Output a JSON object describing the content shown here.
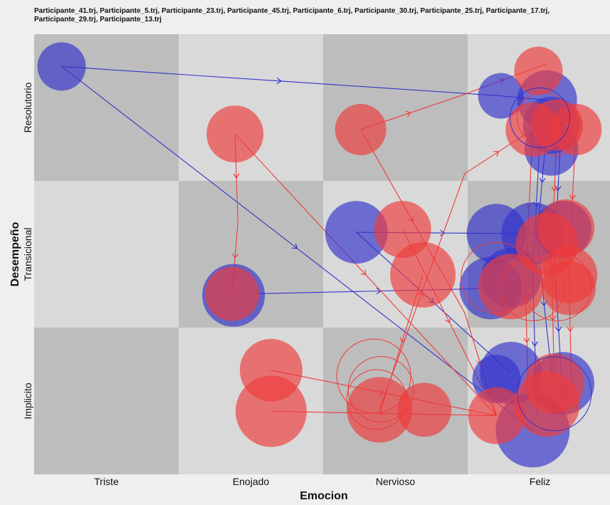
{
  "chart_data": {
    "type": "scatter",
    "title": "Participante_41.trj, Participante_5.trj, Participante_23.trj, Participante_45.trj, Participante_6.trj, Participante_30.trj, Participante_25.trj, Participante_17.trj, Participante_29.trj, Participante_13.trj",
    "xlabel": "Emocion",
    "ylabel": "Desempeño",
    "x_categories": [
      "Triste",
      "Enojado",
      "Nervioso",
      "Feliz"
    ],
    "y_categories": [
      "Resolutorio",
      "Transicional",
      "Implicito"
    ],
    "grid": true,
    "colors": {
      "red": "#ee3b3b",
      "blue": "#3333cc",
      "cell_dark": "#bdbdbd",
      "cell_light": "#d9d9d9"
    },
    "series": [
      {
        "color": "blue",
        "points": [
          {
            "x": 0.19,
            "y": 0.22,
            "r": 34
          },
          {
            "x": 3.23,
            "y": 0.42,
            "r": 32
          },
          {
            "x": 3.55,
            "y": 0.45,
            "r": 42
          },
          {
            "x": 3.58,
            "y": 0.62,
            "r": 40
          },
          {
            "x": 3.58,
            "y": 0.78,
            "r": 38
          },
          {
            "x": 2.23,
            "y": 1.35,
            "r": 44
          },
          {
            "x": 3.2,
            "y": 1.36,
            "r": 42
          },
          {
            "x": 3.45,
            "y": 1.36,
            "r": 44
          },
          {
            "x": 3.66,
            "y": 1.33,
            "r": 40
          },
          {
            "x": 3.3,
            "y": 1.66,
            "r": 42
          },
          {
            "x": 3.16,
            "y": 1.73,
            "r": 44
          },
          {
            "x": 1.38,
            "y": 1.78,
            "r": 44
          },
          {
            "x": 3.3,
            "y": 2.31,
            "r": 44
          },
          {
            "x": 3.2,
            "y": 2.35,
            "r": 34
          },
          {
            "x": 3.66,
            "y": 2.38,
            "r": 44
          },
          {
            "x": 3.45,
            "y": 2.7,
            "r": 52
          }
        ]
      },
      {
        "color": "red",
        "points": [
          {
            "x": 3.49,
            "y": 0.25,
            "r": 34
          },
          {
            "x": 3.45,
            "y": 0.65,
            "r": 38
          },
          {
            "x": 3.62,
            "y": 0.62,
            "r": 36
          },
          {
            "x": 3.75,
            "y": 0.65,
            "r": 36
          },
          {
            "x": 1.39,
            "y": 0.68,
            "r": 40
          },
          {
            "x": 2.26,
            "y": 0.65,
            "r": 36
          },
          {
            "x": 2.55,
            "y": 1.33,
            "r": 40
          },
          {
            "x": 3.68,
            "y": 1.32,
            "r": 40
          },
          {
            "x": 3.55,
            "y": 1.43,
            "r": 44
          },
          {
            "x": 2.69,
            "y": 1.64,
            "r": 46
          },
          {
            "x": 3.3,
            "y": 1.72,
            "r": 46
          },
          {
            "x": 3.7,
            "y": 1.64,
            "r": 40
          },
          {
            "x": 3.7,
            "y": 1.73,
            "r": 38
          },
          {
            "x": 1.37,
            "y": 1.77,
            "r": 38
          },
          {
            "x": 1.64,
            "y": 2.29,
            "r": 44
          },
          {
            "x": 2.39,
            "y": 2.56,
            "r": 46
          },
          {
            "x": 2.7,
            "y": 2.56,
            "r": 38
          },
          {
            "x": 1.64,
            "y": 2.57,
            "r": 50
          },
          {
            "x": 3.2,
            "y": 2.6,
            "r": 40
          },
          {
            "x": 3.55,
            "y": 2.52,
            "r": 46
          },
          {
            "x": 3.6,
            "y": 2.38,
            "r": 42
          }
        ]
      }
    ],
    "ring_series": [
      {
        "color": "red",
        "points": [
          {
            "x": 3.6,
            "y": 0.64,
            "r": 38
          },
          {
            "x": 3.52,
            "y": 0.57,
            "r": 36
          },
          {
            "x": 3.2,
            "y": 1.66,
            "r": 50
          },
          {
            "x": 3.45,
            "y": 1.74,
            "r": 44
          },
          {
            "x": 3.62,
            "y": 1.72,
            "r": 48
          },
          {
            "x": 2.35,
            "y": 2.33,
            "r": 52
          },
          {
            "x": 2.4,
            "y": 2.42,
            "r": 46
          },
          {
            "x": 2.37,
            "y": 2.49,
            "r": 42
          }
        ]
      },
      {
        "color": "blue",
        "points": [
          {
            "x": 3.5,
            "y": 0.57,
            "r": 42
          },
          {
            "x": 3.6,
            "y": 2.45,
            "r": 52
          }
        ]
      }
    ],
    "trajectories": [
      {
        "color": "blue",
        "points": [
          [
            0.19,
            0.22
          ],
          [
            3.23,
            0.42
          ],
          [
            3.55,
            0.45
          ]
        ]
      },
      {
        "color": "blue",
        "points": [
          [
            0.19,
            0.22
          ],
          [
            3.45,
            2.7
          ]
        ]
      },
      {
        "color": "blue",
        "points": [
          [
            1.5,
            1.77
          ],
          [
            3.3,
            1.73
          ]
        ]
      },
      {
        "color": "blue",
        "points": [
          [
            2.23,
            1.35
          ],
          [
            3.45,
            1.36
          ]
        ]
      },
      {
        "color": "blue",
        "points": [
          [
            2.23,
            1.35
          ],
          [
            3.3,
            2.31
          ]
        ]
      },
      {
        "color": "blue",
        "points": [
          [
            3.55,
            0.62
          ],
          [
            3.48,
            1.4
          ],
          [
            3.58,
            2.3
          ]
        ]
      },
      {
        "color": "blue",
        "points": [
          [
            3.65,
            0.58
          ],
          [
            3.6,
            1.55
          ],
          [
            3.66,
            2.5
          ]
        ]
      },
      {
        "color": "blue",
        "points": [
          [
            3.5,
            0.7
          ],
          [
            3.45,
            1.65
          ],
          [
            3.48,
            2.6
          ]
        ]
      },
      {
        "color": "red",
        "points": [
          [
            1.39,
            0.68
          ],
          [
            1.41,
            1.28
          ],
          [
            1.37,
            1.77
          ]
        ]
      },
      {
        "color": "red",
        "points": [
          [
            1.39,
            0.68
          ],
          [
            3.2,
            2.6
          ]
        ]
      },
      {
        "color": "red",
        "points": [
          [
            2.26,
            0.65
          ],
          [
            2.95,
            0.42
          ],
          [
            3.55,
            0.2
          ]
        ]
      },
      {
        "color": "red",
        "points": [
          [
            2.26,
            0.65
          ],
          [
            2.98,
            1.9
          ],
          [
            3.2,
            2.6
          ]
        ]
      },
      {
        "color": "red",
        "points": [
          [
            1.64,
            2.29
          ],
          [
            3.2,
            2.6
          ]
        ]
      },
      {
        "color": "red",
        "points": [
          [
            1.64,
            2.57
          ],
          [
            3.2,
            2.6
          ]
        ]
      },
      {
        "color": "red",
        "points": [
          [
            2.39,
            2.56
          ],
          [
            2.98,
            0.95
          ],
          [
            3.45,
            0.65
          ]
        ]
      },
      {
        "color": "red",
        "points": [
          [
            2.69,
            1.64
          ],
          [
            2.4,
            2.56
          ]
        ]
      },
      {
        "color": "red",
        "points": [
          [
            2.55,
            1.33
          ],
          [
            3.2,
            2.6
          ]
        ]
      },
      {
        "color": "red",
        "points": [
          [
            3.62,
            0.64
          ],
          [
            3.58,
            1.5
          ],
          [
            3.6,
            2.4
          ]
        ]
      },
      {
        "color": "red",
        "points": [
          [
            3.75,
            0.65
          ],
          [
            3.7,
            1.6
          ],
          [
            3.72,
            2.45
          ]
        ]
      },
      {
        "color": "red",
        "points": [
          [
            3.45,
            0.66
          ],
          [
            3.4,
            1.7
          ],
          [
            3.42,
            2.5
          ]
        ]
      }
    ]
  }
}
